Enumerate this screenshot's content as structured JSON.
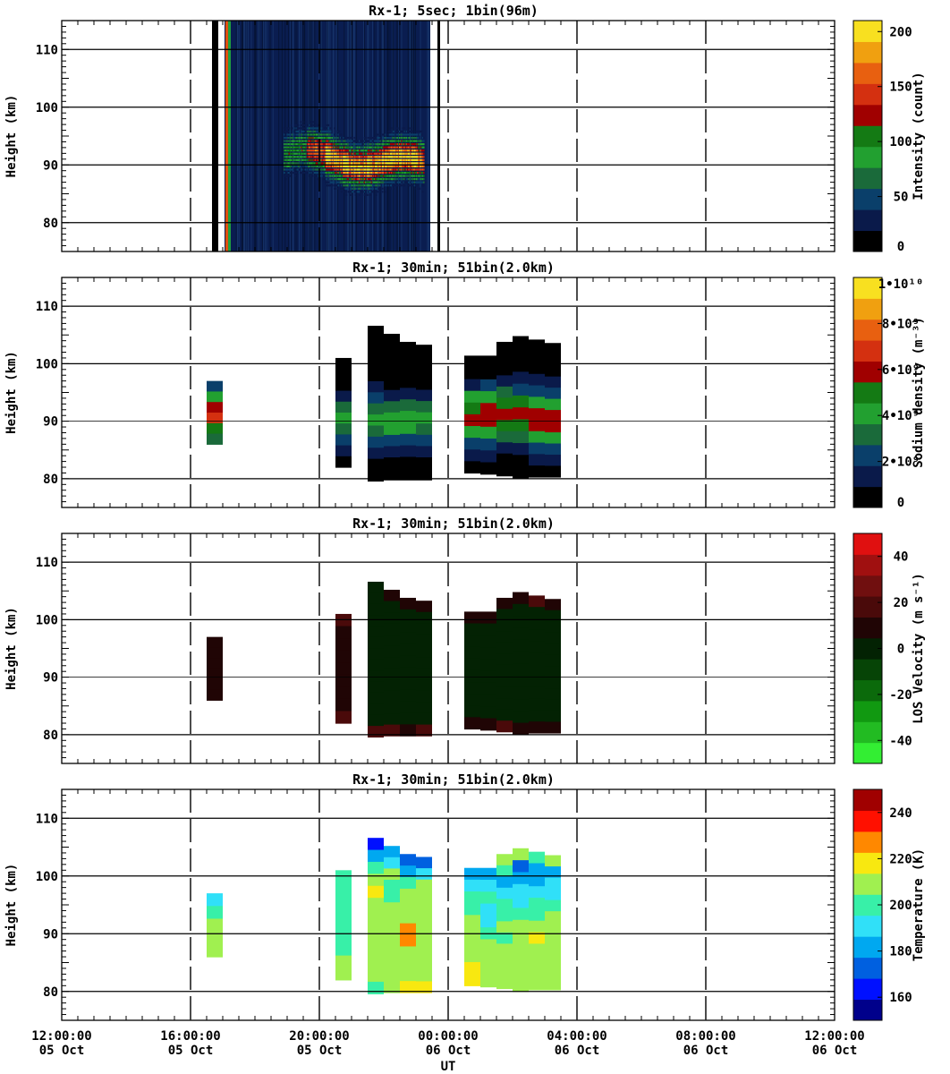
{
  "chart_data": [
    {
      "type": "heatmap",
      "title": "Rx-1;  5sec; 1bin(96m)",
      "ylabel": "Height (km)",
      "ylim": [
        75,
        115
      ],
      "yticks": [
        "110",
        "100",
        "90",
        "80"
      ],
      "xlim": [
        "2019-10-05 12:00",
        "2019-10-06 12:00"
      ],
      "colorbar": {
        "label": "Intensity (count)",
        "range": [
          0,
          210
        ],
        "ticks": [
          "200",
          "150",
          "100",
          "50",
          "0"
        ],
        "colors": [
          "#000000",
          "#0a1a4a",
          "#0a3f6a",
          "#1a6a3a",
          "#22a030",
          "#147a14",
          "#a00000",
          "#d43010",
          "#e86010",
          "#f0a010",
          "#f8e020"
        ]
      },
      "observations": [
        {
          "start_ut": "16:45",
          "end_ut": "23:45",
          "layer_bottom_km": 85,
          "layer_top_km": 95,
          "peak_km": 92,
          "peak_counts": 200
        }
      ]
    },
    {
      "type": "heatmap",
      "title": "Rx-1; 30min; 51bin(2.0km)",
      "ylabel": "Height (km)",
      "ylim": [
        75,
        115
      ],
      "yticks": [
        "110",
        "100",
        "90",
        "80"
      ],
      "xlim": [
        "2019-10-05 12:00",
        "2019-10-06 12:00"
      ],
      "colorbar": {
        "label": "Sodium density (m⁻³)",
        "range": [
          0,
          10000000000.0
        ],
        "ticks": [
          "1•10¹⁰",
          "8•10⁹",
          "6•10⁹",
          "4•10⁹",
          "2•10⁹",
          "0"
        ],
        "colors": [
          "#000000",
          "#0a1a4a",
          "#0a3f6a",
          "#1a6a3a",
          "#22a030",
          "#147a14",
          "#a00000",
          "#d43010",
          "#e86010",
          "#f0a010",
          "#f8e020"
        ]
      },
      "columns": [
        {
          "start_ut": "16:30",
          "end_ut": "17:00",
          "bottom_km": 86.0,
          "top_km": 97.0,
          "peak_km": 91,
          "peak_density": 6500000000.0
        },
        {
          "start_ut": "20:30",
          "end_ut": "21:00",
          "bottom_km": 82.0,
          "top_km": 101.0,
          "peak_km": 90,
          "peak_density": 3800000000.0
        },
        {
          "start_ut": "21:30",
          "end_ut": "22:00",
          "bottom_km": 79.6,
          "top_km": 106.6,
          "peak_km": 90,
          "peak_density": 3800000000.0
        },
        {
          "start_ut": "22:00",
          "end_ut": "22:30",
          "bottom_km": 79.8,
          "top_km": 105.2,
          "peak_km": 90,
          "peak_density": 4200000000.0
        },
        {
          "start_ut": "22:30",
          "end_ut": "23:00",
          "bottom_km": 79.8,
          "top_km": 103.8,
          "peak_km": 90,
          "peak_density": 4200000000.0
        },
        {
          "start_ut": "23:00",
          "end_ut": "23:30",
          "bottom_km": 79.8,
          "top_km": 103.3,
          "peak_km": 90,
          "peak_density": 3800000000.0
        },
        {
          "start_ut": "00:30",
          "end_ut": "01:00",
          "bottom_km": 81.0,
          "top_km": 101.4,
          "peak_km": 91,
          "peak_density": 5800000000.0
        },
        {
          "start_ut": "01:00",
          "end_ut": "01:30",
          "bottom_km": 80.8,
          "top_km": 101.4,
          "peak_km": 91,
          "peak_density": 5800000000.0
        },
        {
          "start_ut": "01:30",
          "end_ut": "02:00",
          "bottom_km": 80.5,
          "top_km": 103.8,
          "peak_km": 91,
          "peak_density": 6200000000.0
        },
        {
          "start_ut": "02:00",
          "end_ut": "02:30",
          "bottom_km": 80.0,
          "top_km": 104.8,
          "peak_km": 91,
          "peak_density": 6000000000.0
        },
        {
          "start_ut": "02:30",
          "end_ut": "03:00",
          "bottom_km": 80.3,
          "top_km": 104.2,
          "peak_km": 90,
          "peak_density": 6000000000.0
        },
        {
          "start_ut": "03:00",
          "end_ut": "03:30",
          "bottom_km": 80.3,
          "top_km": 103.6,
          "peak_km": 90,
          "peak_density": 6500000000.0
        }
      ]
    },
    {
      "type": "heatmap",
      "title": "Rx-1; 30min; 51bin(2.0km)",
      "ylabel": "Height (km)",
      "ylim": [
        75,
        115
      ],
      "yticks": [
        "110",
        "100",
        "90",
        "80"
      ],
      "xlim": [
        "2019-10-05 12:00",
        "2019-10-06 12:00"
      ],
      "colorbar": {
        "label": "LOS Velocity (m s⁻¹)",
        "range": [
          -50,
          50
        ],
        "ticks": [
          "40",
          "20",
          "0",
          "-20",
          "-40"
        ],
        "colors": [
          "#33ee33",
          "#22bb22",
          "#119911",
          "#0b6a0b",
          "#064406",
          "#032203",
          "#200505",
          "#4a0a0a",
          "#700f0f",
          "#a01010",
          "#e01010"
        ]
      },
      "columns": [
        {
          "start_ut": "16:30",
          "end_ut": "17:00",
          "bottom_km": 86.0,
          "top_km": 97.0,
          "value_ms": 5
        },
        {
          "start_ut": "20:30",
          "end_ut": "21:00",
          "bottom_km": 82.0,
          "top_km": 101.0,
          "value_ms": 5
        },
        {
          "start_ut": "21:30",
          "end_ut": "22:00",
          "bottom_km": 79.6,
          "top_km": 106.6,
          "value_ms": 3
        },
        {
          "start_ut": "22:00",
          "end_ut": "22:30",
          "bottom_km": 79.8,
          "top_km": 105.2,
          "value_ms": 3
        },
        {
          "start_ut": "22:30",
          "end_ut": "23:00",
          "bottom_km": 79.8,
          "top_km": 103.8,
          "value_ms": 3
        },
        {
          "start_ut": "23:00",
          "end_ut": "23:30",
          "bottom_km": 79.8,
          "top_km": 103.3,
          "value_ms": 3
        },
        {
          "start_ut": "00:30",
          "end_ut": "01:00",
          "bottom_km": 81.0,
          "top_km": 101.4,
          "value_ms": 3
        },
        {
          "start_ut": "01:00",
          "end_ut": "01:30",
          "bottom_km": 80.8,
          "top_km": 101.4,
          "value_ms": 3
        },
        {
          "start_ut": "01:30",
          "end_ut": "02:00",
          "bottom_km": 80.5,
          "top_km": 103.8,
          "value_ms": 3
        },
        {
          "start_ut": "02:00",
          "end_ut": "02:30",
          "bottom_km": 80.0,
          "top_km": 104.8,
          "value_ms": 3
        },
        {
          "start_ut": "02:30",
          "end_ut": "03:00",
          "bottom_km": 80.3,
          "top_km": 104.2,
          "value_ms": 3
        },
        {
          "start_ut": "03:00",
          "end_ut": "03:30",
          "bottom_km": 80.3,
          "top_km": 103.6,
          "value_ms": 3
        }
      ]
    },
    {
      "type": "heatmap",
      "title": "Rx-1; 30min; 51bin(2.0km)",
      "ylabel": "Height (km)",
      "xlabel": "UT",
      "ylim": [
        75,
        115
      ],
      "yticks": [
        "110",
        "100",
        "90",
        "80"
      ],
      "xlim": [
        "2019-10-05 12:00",
        "2019-10-06 12:00"
      ],
      "colorbar": {
        "label": "Temperature (K)",
        "range": [
          150,
          250
        ],
        "ticks": [
          "240",
          "220",
          "200",
          "180",
          "160"
        ],
        "colors": [
          "#00008b",
          "#0010ff",
          "#0060e0",
          "#00a8f0",
          "#30e0f8",
          "#38f0a8",
          "#a0f050",
          "#f8e810",
          "#ff8800",
          "#ff1000",
          "#a00000"
        ]
      },
      "columns": [
        {
          "start_ut": "16:30",
          "end_ut": "17:00",
          "bottom_km": 86.0,
          "top_km": 97.0,
          "temps_K_bottom_to_top": [
            206,
            206,
            206,
            198,
            188,
            172
          ]
        },
        {
          "start_ut": "20:30",
          "end_ut": "21:00",
          "bottom_km": 82.0,
          "top_km": 101.0,
          "temps_K_bottom_to_top": [
            206,
            206,
            200,
            198,
            198,
            198,
            200,
            200,
            202,
            195
          ]
        },
        {
          "start_ut": "21:30",
          "end_ut": "22:00",
          "bottom_km": 79.6,
          "top_km": 106.6,
          "temps_K_bottom_to_top": [
            200,
            206,
            206,
            206,
            206,
            206,
            206,
            206,
            215,
            212,
            200,
            185,
            168
          ]
        },
        {
          "start_ut": "22:00",
          "end_ut": "22:30",
          "bottom_km": 79.8,
          "top_km": 105.2,
          "temps_K_bottom_to_top": [
            206,
            206,
            206,
            212,
            210,
            206,
            206,
            200,
            202,
            212,
            190,
            180
          ]
        },
        {
          "start_ut": "22:30",
          "end_ut": "23:00",
          "bottom_km": 79.8,
          "top_km": 103.8,
          "temps_K_bottom_to_top": [
            215,
            206,
            206,
            206,
            225,
            225,
            206,
            206,
            212,
            200,
            182,
            172
          ]
        },
        {
          "start_ut": "23:00",
          "end_ut": "23:30",
          "bottom_km": 79.8,
          "top_km": 103.3,
          "temps_K_bottom_to_top": [
            215,
            210,
            206,
            212,
            212,
            212,
            206,
            206,
            208,
            206,
            188,
            172
          ]
        },
        {
          "start_ut": "00:30",
          "end_ut": "01:00",
          "bottom_km": 81.0,
          "top_km": 101.4,
          "temps_K_bottom_to_top": [
            215,
            215,
            212,
            208,
            206,
            206,
            200,
            200,
            190,
            185
          ]
        },
        {
          "start_ut": "01:00",
          "end_ut": "01:30",
          "bottom_km": 80.8,
          "top_km": 101.4,
          "temps_K_bottom_to_top": [
            206,
            206,
            206,
            206,
            200,
            195,
            188,
            200,
            188,
            182
          ]
        },
        {
          "start_ut": "01:30",
          "end_ut": "02:00",
          "bottom_km": 80.5,
          "top_km": 103.8,
          "temps_K_bottom_to_top": [
            206,
            206,
            206,
            206,
            200,
            206,
            198,
            200,
            190,
            182,
            202,
            206
          ]
        },
        {
          "start_ut": "02:00",
          "end_ut": "02:30",
          "bottom_km": 80.0,
          "top_km": 104.8,
          "temps_K_bottom_to_top": [
            206,
            206,
            206,
            206,
            206,
            206,
            200,
            195,
            188,
            182,
            172,
            206
          ]
        },
        {
          "start_ut": "02:30",
          "end_ut": "03:00",
          "bottom_km": 80.3,
          "top_km": 104.2,
          "temps_K_bottom_to_top": [
            206,
            206,
            206,
            210,
            214,
            206,
            200,
            200,
            188,
            182,
            180,
            196
          ]
        },
        {
          "start_ut": "03:00",
          "end_ut": "03:30",
          "bottom_km": 80.3,
          "top_km": 103.6,
          "temps_K_bottom_to_top": [
            206,
            206,
            206,
            212,
            212,
            206,
            206,
            200,
            195,
            188,
            185,
            206
          ]
        }
      ]
    }
  ],
  "x_axis": {
    "label": "UT",
    "ticks": [
      {
        "time": "12:00:00",
        "date": "05 Oct"
      },
      {
        "time": "16:00:00",
        "date": "05 Oct"
      },
      {
        "time": "20:00:00",
        "date": "05 Oct"
      },
      {
        "time": "00:00:00",
        "date": "06 Oct"
      },
      {
        "time": "04:00:00",
        "date": "06 Oct"
      },
      {
        "time": "08:00:00",
        "date": "06 Oct"
      },
      {
        "time": "12:00:00",
        "date": "06 Oct"
      }
    ]
  }
}
